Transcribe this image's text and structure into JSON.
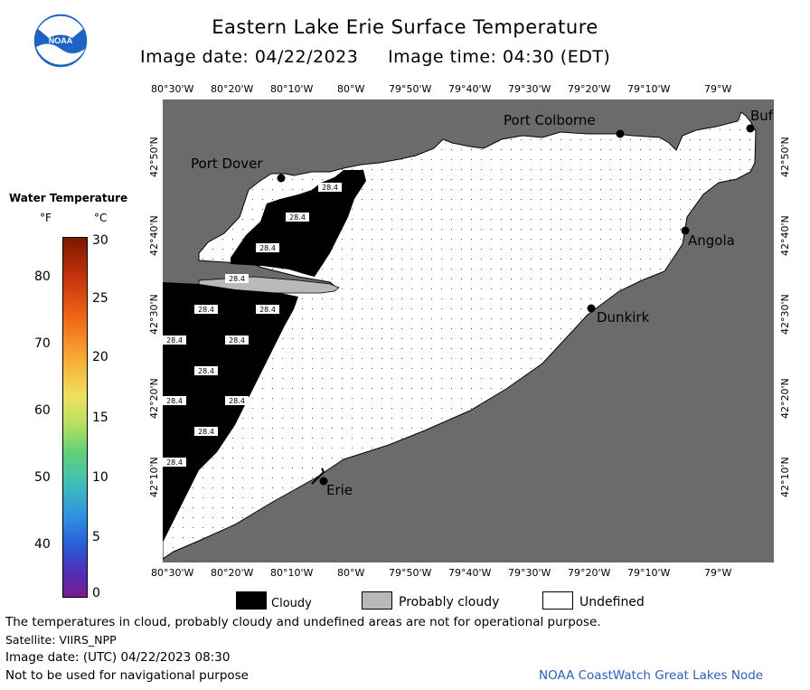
{
  "header": {
    "title": "Eastern Lake Erie Surface Temperature",
    "date_label": "Image date:",
    "date": "04/22/2023",
    "time_label": "Image time:",
    "time": "04:30 (EDT)",
    "logo_text": "NOAA"
  },
  "map": {
    "lon_ticks": [
      "80°30'W",
      "80°20'W",
      "80°10'W",
      "80°W",
      "79°50'W",
      "79°40'W",
      "79°30'W",
      "79°20'W",
      "79°10'W",
      "79°W"
    ],
    "lat_ticks": [
      "42°50'N",
      "42°40'N",
      "42°30'N",
      "42°20'N",
      "42°10'N"
    ],
    "places": [
      "Port Dover",
      "Port Colborne",
      "Buf",
      "Angola",
      "Dunkirk",
      "Erie"
    ],
    "cell_value": "28.4",
    "colors": {
      "land": "#6b6b6b",
      "cloud": "#000000",
      "probably_cloudy": "#b9b9b9",
      "undefined": "#ffffff"
    }
  },
  "legend": {
    "title": "Water Temperature",
    "unit_f": "°F",
    "unit_c": "°C",
    "f_ticks": [
      "80",
      "70",
      "60",
      "50",
      "40"
    ],
    "c_ticks": [
      "30",
      "25",
      "20",
      "15",
      "10",
      "5",
      "0"
    ]
  },
  "key": {
    "cloudy": "Cloudy",
    "probably_cloudy": "Probably cloudy",
    "undefined": "Undefined"
  },
  "footer": {
    "note": "The temperatures in cloud, probably cloudy and undefined areas are not for operational purpose.",
    "satellite": "Satellite: VIIRS_NPP",
    "utc": "Image date: (UTC) 04/22/2023  08:30",
    "nav": "Not to be used for navigational purpose",
    "credit": "NOAA CoastWatch Great Lakes Node"
  }
}
